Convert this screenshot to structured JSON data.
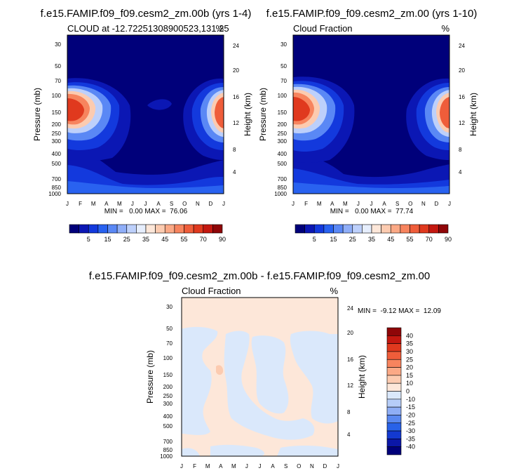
{
  "chart_data": [
    {
      "type": "contour",
      "title": "f.e15.FAMIP.f09_f09.cesm2_zm.00b (yrs 1-4)",
      "subtitle_left": "CLOUD at -12.7225130890052​3,131.25",
      "subtitle_right": "",
      "ylabel": "Pressure (mb)",
      "ylabel_right": "Height (km)",
      "x": [
        "J",
        "F",
        "M",
        "A",
        "M",
        "J",
        "J",
        "A",
        "S",
        "O",
        "N",
        "D",
        "J"
      ],
      "y_ticks": [
        "30",
        "50",
        "70",
        "100",
        "150",
        "200",
        "250",
        "300",
        "400",
        "500",
        "700",
        "850",
        "1000"
      ],
      "y2_ticks": [
        "24",
        "20",
        "16",
        "12",
        "8",
        "4"
      ],
      "minmax_text": "MIN =   0.00 MAX =  76.06",
      "min": 0.0,
      "max": 76.06,
      "features": [
        {
          "name": "west maximum",
          "month": 1.0,
          "pressure": 170,
          "value": 76
        },
        {
          "name": "east maximum",
          "month": 12.6,
          "pressure": 160,
          "value": 70
        }
      ]
    },
    {
      "type": "contour",
      "title": "f.e15.FAMIP.f09_f09.cesm2_zm.00 (yrs 1-10)",
      "subtitle_left": "Cloud Fraction",
      "subtitle_right": "%",
      "ylabel": "Pressure (mb)",
      "ylabel_right": "Height (km)",
      "x": [
        "J",
        "F",
        "M",
        "A",
        "M",
        "J",
        "J",
        "A",
        "S",
        "O",
        "N",
        "D",
        "J"
      ],
      "y_ticks": [
        "30",
        "50",
        "70",
        "100",
        "150",
        "200",
        "250",
        "300",
        "400",
        "500",
        "700",
        "850",
        "1000"
      ],
      "y2_ticks": [
        "24",
        "20",
        "16",
        "12",
        "8",
        "4"
      ],
      "minmax_text": "MIN =   0.00 MAX =  77.74",
      "min": 0.0,
      "max": 77.74,
      "features": [
        {
          "name": "west maximum",
          "month": 1.0,
          "pressure": 170,
          "value": 78
        },
        {
          "name": "east maximum",
          "month": 12.6,
          "pressure": 160,
          "value": 72
        }
      ]
    },
    {
      "type": "contour",
      "title": "f.e15.FAMIP.f09_f09.cesm2_zm.00b - f.e15.FAMIP.f09_f09.cesm2_zm.00",
      "subtitle_left": "Cloud Fraction",
      "subtitle_right": "%",
      "ylabel": "Pressure (mb)",
      "ylabel_right": "Height (km)",
      "x": [
        "J",
        "F",
        "M",
        "A",
        "M",
        "J",
        "J",
        "A",
        "S",
        "O",
        "N",
        "D",
        "J"
      ],
      "y_ticks": [
        "30",
        "50",
        "70",
        "100",
        "150",
        "200",
        "250",
        "300",
        "400",
        "500",
        "700",
        "850",
        "1000"
      ],
      "y2_ticks": [
        "24",
        "20",
        "16",
        "12",
        "8",
        "4"
      ],
      "minmax_text": "MIN =  -9.12 MAX =  12.09",
      "min": -9.12,
      "max": 12.09
    }
  ],
  "colorbars": {
    "top": {
      "labels": [
        "5",
        "15",
        "25",
        "35",
        "45",
        "55",
        "70",
        "90"
      ],
      "colors": [
        "#00007a",
        "#0b17b4",
        "#1339dd",
        "#2962f0",
        "#5a88f5",
        "#8faef8",
        "#bdd0fb",
        "#e6eefd",
        "#fde7d9",
        "#fccbb0",
        "#fba986",
        "#f7845e",
        "#ef5d3a",
        "#e0391e",
        "#c41810",
        "#8f0608"
      ]
    },
    "bottom": {
      "labels": [
        "40",
        "35",
        "30",
        "25",
        "20",
        "15",
        "10",
        "0",
        "-10",
        "-15",
        "-20",
        "-25",
        "-30",
        "-35",
        "-40"
      ],
      "colors": [
        "#8f0608",
        "#c41810",
        "#e0391e",
        "#ef5d3a",
        "#f7845e",
        "#fba986",
        "#fccbb0",
        "#fde7d9",
        "#dae8fb",
        "#b6cdf8",
        "#8faef5",
        "#5a88f0",
        "#2962e8",
        "#1339d0",
        "#0b17a8",
        "#00007a"
      ]
    }
  }
}
